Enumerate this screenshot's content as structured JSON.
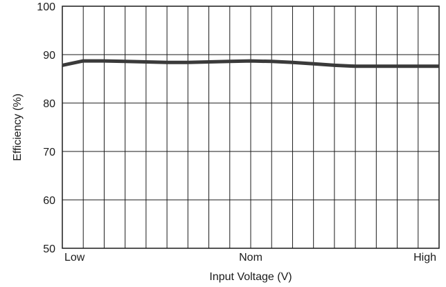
{
  "chart_data": {
    "type": "line",
    "title": "",
    "xlabel": "Input Voltage (V)",
    "ylabel": "Efficiency (%)",
    "ylim": [
      50,
      100
    ],
    "yticks": [
      "50",
      "60",
      "70",
      "80",
      "90",
      "100"
    ],
    "xlim": [
      0,
      18
    ],
    "xticks": [
      {
        "pos": 0,
        "label": "Low"
      },
      {
        "pos": 9,
        "label": "Nom"
      },
      {
        "pos": 18,
        "label": "High"
      }
    ],
    "grid": true,
    "series": [
      {
        "name": "",
        "color": "#3a3a3a",
        "x": [
          0,
          1,
          2,
          3,
          4,
          5,
          6,
          7,
          8,
          9,
          10,
          11,
          12,
          13,
          14,
          15,
          16,
          17,
          18
        ],
        "y": [
          87.8,
          88.7,
          88.7,
          88.6,
          88.5,
          88.4,
          88.4,
          88.5,
          88.6,
          88.7,
          88.6,
          88.4,
          88.1,
          87.8,
          87.6,
          87.6,
          87.6,
          87.6,
          87.6
        ]
      }
    ]
  }
}
